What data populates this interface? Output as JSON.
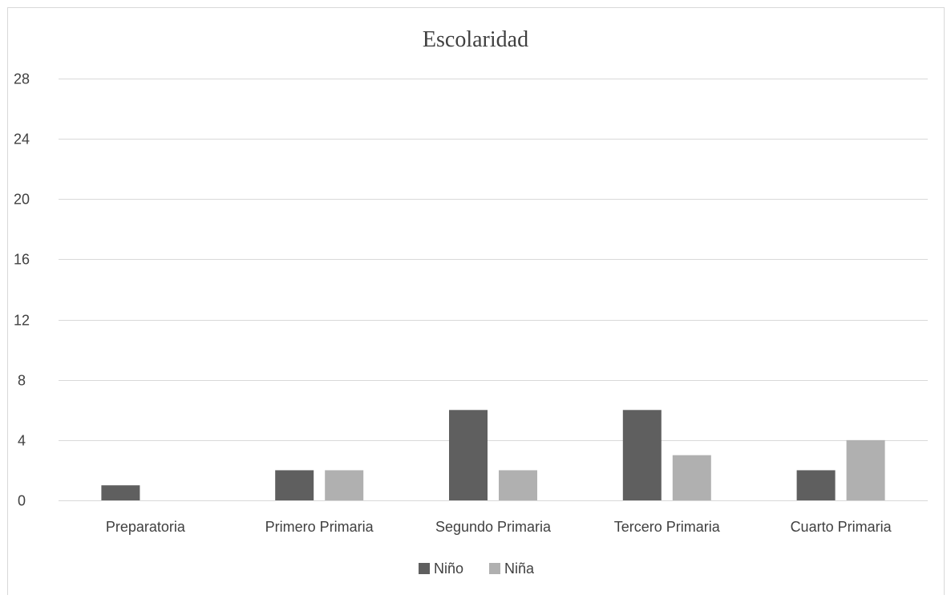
{
  "chart_data": {
    "type": "bar",
    "title": "Escolaridad",
    "categories": [
      "Preparatoria",
      "Primero Primaria",
      "Segundo Primaria",
      "Tercero Primaria",
      "Cuarto Primaria"
    ],
    "series": [
      {
        "name": "Niño",
        "values": [
          1,
          2,
          6,
          6,
          2
        ],
        "color": "#5f5f5f"
      },
      {
        "name": "Niña",
        "values": [
          0,
          2,
          2,
          3,
          4
        ],
        "color": "#b0b0b0"
      }
    ],
    "xlabel": "",
    "ylabel": "",
    "ylim": [
      0,
      28
    ],
    "yticks": [
      0,
      4,
      8,
      12,
      16,
      20,
      24,
      28
    ],
    "grid": true,
    "legend_position": "bottom",
    "border_color": "#d9d9d9",
    "grid_color": "#d9d9d9"
  }
}
